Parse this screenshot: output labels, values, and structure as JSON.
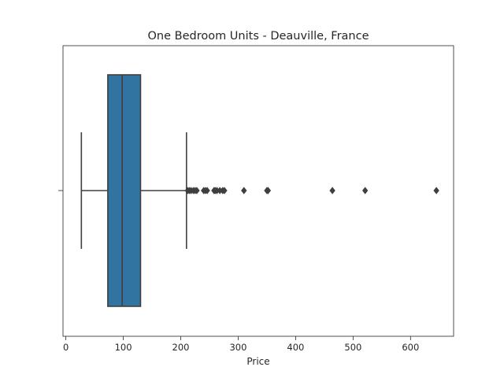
{
  "chart_data": {
    "type": "boxplot",
    "orientation": "horizontal",
    "title": "One Bedroom Units - Deauville, France",
    "xlabel": "Price",
    "ylabel": "",
    "xlim": [
      -5,
      675
    ],
    "xticks": [
      0,
      100,
      200,
      300,
      400,
      500,
      600
    ],
    "grid": false,
    "box_color": "#3274a1",
    "line_color": "#3f3f3f",
    "box": {
      "whisker_low": 27,
      "q1": 73,
      "median": 98,
      "q3": 130,
      "whisker_high": 210
    },
    "outliers": [
      212,
      215,
      218,
      222,
      225,
      228,
      240,
      243,
      246,
      258,
      260,
      263,
      268,
      273,
      276,
      310,
      350,
      352,
      464,
      521,
      645
    ]
  }
}
